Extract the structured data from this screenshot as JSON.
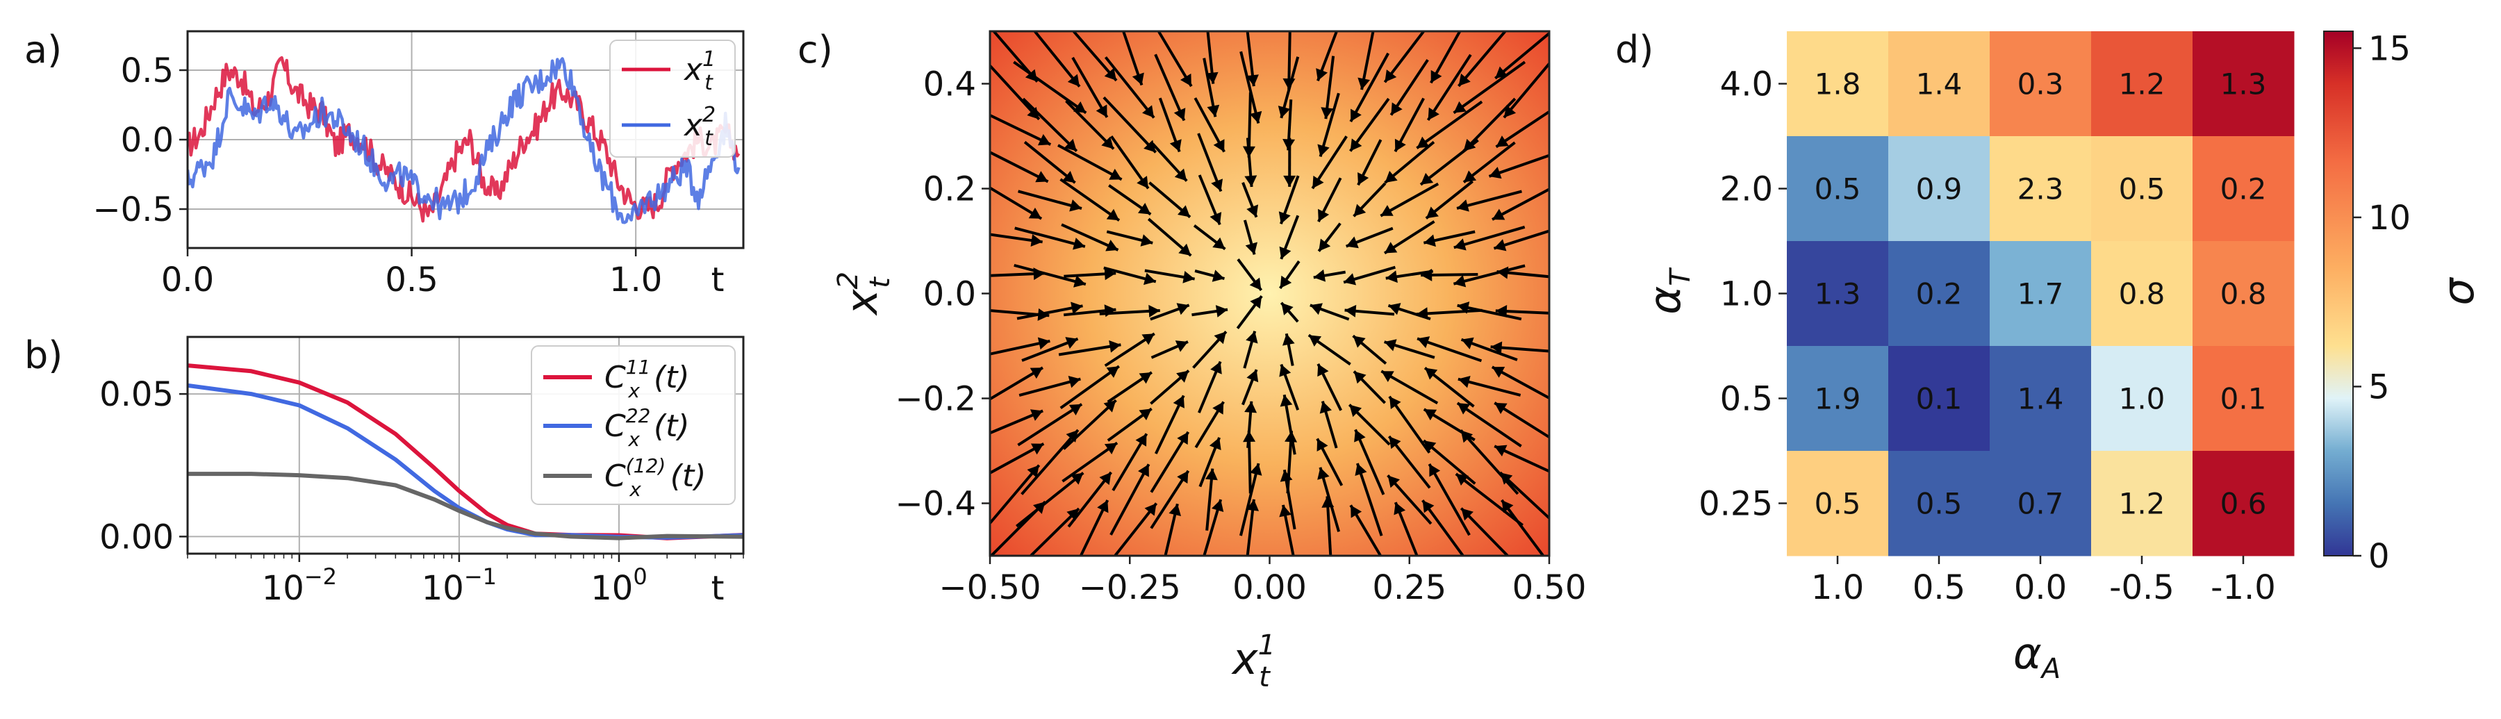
{
  "panel_labels": [
    "a)",
    "b)",
    "c)",
    "d)"
  ],
  "chart_data": [
    {
      "panel": "a)",
      "type": "line",
      "x_tick_labels": [
        "0.0",
        "0.5",
        "1.0"
      ],
      "x_tick_values": [
        0.0,
        0.5,
        1.0
      ],
      "x_end_label": "t",
      "xlim": [
        0.0,
        1.24
      ],
      "ylim": [
        -0.78,
        0.78
      ],
      "y_tick_values": [
        -0.5,
        0.0,
        0.5
      ],
      "y_tick_labels": [
        "−0.5",
        "0.0",
        "0.5"
      ],
      "grid": true,
      "legend_position": "top-right",
      "series": [
        {
          "name": "xₜ¹",
          "legend_main": "x",
          "legend_sup": "1",
          "legend_sub": "t",
          "color": "#dc143c",
          "x": [
            0.0,
            0.03,
            0.06,
            0.09,
            0.12,
            0.15,
            0.18,
            0.21,
            0.24,
            0.27,
            0.3,
            0.33,
            0.36,
            0.39,
            0.42,
            0.45,
            0.48,
            0.51,
            0.54,
            0.57,
            0.6,
            0.63,
            0.66,
            0.69,
            0.72,
            0.75,
            0.78,
            0.81,
            0.84,
            0.87,
            0.9,
            0.93,
            0.96,
            0.99,
            1.02,
            1.05,
            1.08,
            1.11,
            1.14,
            1.17,
            1.2,
            1.23
          ],
          "values": [
            -0.05,
            0.05,
            0.3,
            0.5,
            0.45,
            0.2,
            0.3,
            0.55,
            0.35,
            0.25,
            0.2,
            -0.05,
            0.05,
            0.0,
            -0.15,
            -0.25,
            -0.35,
            -0.45,
            -0.55,
            -0.35,
            -0.1,
            0.0,
            -0.3,
            -0.4,
            -0.2,
            0.0,
            0.1,
            0.3,
            0.35,
            0.25,
            0.1,
            -0.05,
            -0.3,
            -0.45,
            -0.5,
            -0.45,
            -0.2,
            -0.1,
            0.0,
            -0.05,
            0.05,
            -0.1
          ]
        },
        {
          "name": "xₜ²",
          "legend_main": "x",
          "legend_sup": "2",
          "legend_sub": "t",
          "color": "#4169e1",
          "x": [
            0.0,
            0.03,
            0.06,
            0.09,
            0.12,
            0.15,
            0.18,
            0.21,
            0.24,
            0.27,
            0.3,
            0.33,
            0.36,
            0.39,
            0.42,
            0.45,
            0.48,
            0.51,
            0.54,
            0.57,
            0.6,
            0.63,
            0.66,
            0.69,
            0.72,
            0.75,
            0.78,
            0.81,
            0.84,
            0.87,
            0.9,
            0.93,
            0.96,
            0.99,
            1.02,
            1.05,
            1.08,
            1.11,
            1.14,
            1.17,
            1.2,
            1.23
          ],
          "values": [
            -0.3,
            -0.2,
            -0.1,
            0.3,
            0.25,
            0.15,
            0.3,
            0.2,
            0.0,
            0.1,
            0.2,
            0.15,
            0.05,
            -0.05,
            -0.2,
            -0.3,
            -0.25,
            -0.35,
            -0.4,
            -0.5,
            -0.45,
            -0.35,
            -0.15,
            0.05,
            0.25,
            0.35,
            0.4,
            0.5,
            0.55,
            0.3,
            -0.1,
            -0.3,
            -0.5,
            -0.6,
            -0.45,
            -0.4,
            -0.3,
            -0.2,
            -0.4,
            -0.15,
            0.1,
            -0.2
          ]
        }
      ]
    },
    {
      "panel": "b)",
      "type": "line",
      "x_scale": "log",
      "xlim": [
        0.002,
        6.0
      ],
      "x_tick_values": [
        0.01,
        0.1,
        1
      ],
      "x_tick_labels": [
        {
          "base": "10",
          "exp": "−2"
        },
        {
          "base": "10",
          "exp": "−1"
        },
        {
          "base": "10",
          "exp": "0"
        }
      ],
      "x_end_label": "t",
      "ylim": [
        -0.006,
        0.07
      ],
      "y_tick_values": [
        0.0,
        0.05
      ],
      "y_tick_labels": [
        "0.00",
        "0.05"
      ],
      "grid": true,
      "legend_position": "top-right",
      "series": [
        {
          "name": "Cₓ¹¹(t)",
          "legend_main": "C",
          "legend_sup": "11",
          "legend_sub": "x",
          "legend_tail": "(t)",
          "color": "#dc143c",
          "x": [
            0.002,
            0.005,
            0.01,
            0.02,
            0.04,
            0.07,
            0.1,
            0.15,
            0.2,
            0.3,
            0.5,
            1.0,
            2.0,
            6.0
          ],
          "values": [
            0.06,
            0.058,
            0.054,
            0.047,
            0.036,
            0.024,
            0.016,
            0.008,
            0.004,
            0.001,
            0.0,
            0.0,
            0.0,
            0.0
          ]
        },
        {
          "name": "Cₓ²²(t)",
          "legend_main": "C",
          "legend_sup": "22",
          "legend_sub": "x",
          "legend_tail": "(t)",
          "color": "#4169e1",
          "x": [
            0.002,
            0.005,
            0.01,
            0.02,
            0.04,
            0.07,
            0.1,
            0.15,
            0.2,
            0.3,
            0.5,
            1.0,
            2.0,
            6.0
          ],
          "values": [
            0.053,
            0.05,
            0.046,
            0.038,
            0.027,
            0.016,
            0.01,
            0.005,
            0.0025,
            0.0005,
            0.0,
            0.0,
            0.0,
            0.0
          ]
        },
        {
          "name": "Cₓ⁽¹²⁾(t)",
          "legend_main": "C",
          "legend_sup": "(12)",
          "legend_sub": "x",
          "legend_tail": "(t)",
          "color": "#666666",
          "x": [
            0.002,
            0.005,
            0.01,
            0.02,
            0.04,
            0.07,
            0.1,
            0.15,
            0.2,
            0.3,
            0.5,
            1.0,
            2.0,
            6.0
          ],
          "values": [
            0.022,
            0.022,
            0.0215,
            0.0205,
            0.018,
            0.013,
            0.009,
            0.005,
            0.003,
            0.001,
            0.0,
            0.0,
            0.0,
            0.0
          ]
        }
      ]
    },
    {
      "panel": "c)",
      "type": "vector_field",
      "xlim": [
        -0.5,
        0.5
      ],
      "ylim": [
        -0.5,
        0.5
      ],
      "x_tick_values": [
        -0.5,
        -0.25,
        0.0,
        0.25,
        0.5
      ],
      "x_tick_labels": [
        "−0.50",
        "−0.25",
        "0.00",
        "0.25",
        "0.50"
      ],
      "y_tick_values": [
        -0.4,
        -0.2,
        0.0,
        0.2,
        0.4
      ],
      "y_tick_labels": [
        "−0.4",
        "−0.2",
        "0.0",
        "0.2",
        "0.4"
      ],
      "xlabel": {
        "main": "x",
        "sup": "1",
        "sub": "t"
      },
      "ylabel": {
        "main": "x",
        "sup": "2",
        "sub": "t"
      },
      "grid_size": 14,
      "field": "inward-pointing flow toward the origin on a warm background",
      "colors": {
        "center": "#fff2b0",
        "edge": "#e8442a",
        "arrow": "#000000"
      }
    },
    {
      "panel": "d)",
      "type": "heatmap",
      "rows": [
        "4.0",
        "2.0",
        "1.0",
        "0.5",
        "0.25"
      ],
      "cols": [
        "1.0",
        "0.5",
        "0.0",
        "-0.5",
        "-1.0"
      ],
      "ylabel": {
        "main": "α",
        "sub": "T"
      },
      "xlabel": {
        "main": "α",
        "sub": "A"
      },
      "colorbar_label": "σ",
      "color_range": [
        0,
        15.5
      ],
      "colorbar_ticks": [
        0,
        5,
        10,
        15
      ],
      "colorbar_tick_labels": [
        "0",
        "5",
        "10",
        "15"
      ],
      "values": [
        [
          6.5,
          7.5,
          10.5,
          12.5,
          15.0
        ],
        [
          2.3,
          3.8,
          6.5,
          6.8,
          11.5
        ],
        [
          0.4,
          1.2,
          3.2,
          6.5,
          10.5
        ],
        [
          2.0,
          0.1,
          1.0,
          4.5,
          11.5
        ],
        [
          7.0,
          1.0,
          1.0,
          6.0,
          15.0
        ]
      ],
      "labels": [
        [
          "1.8",
          "1.4",
          "0.3",
          "1.2",
          "1.3"
        ],
        [
          "0.5",
          "0.9",
          "2.3",
          "0.5",
          "0.2"
        ],
        [
          "1.3",
          "0.2",
          "1.7",
          "0.8",
          "0.8"
        ],
        [
          "1.9",
          "0.1",
          "1.4",
          "1.0",
          "0.1"
        ],
        [
          "0.5",
          "0.5",
          "0.7",
          "1.2",
          "0.6"
        ]
      ],
      "colormap": "RdYlBu_r"
    }
  ]
}
